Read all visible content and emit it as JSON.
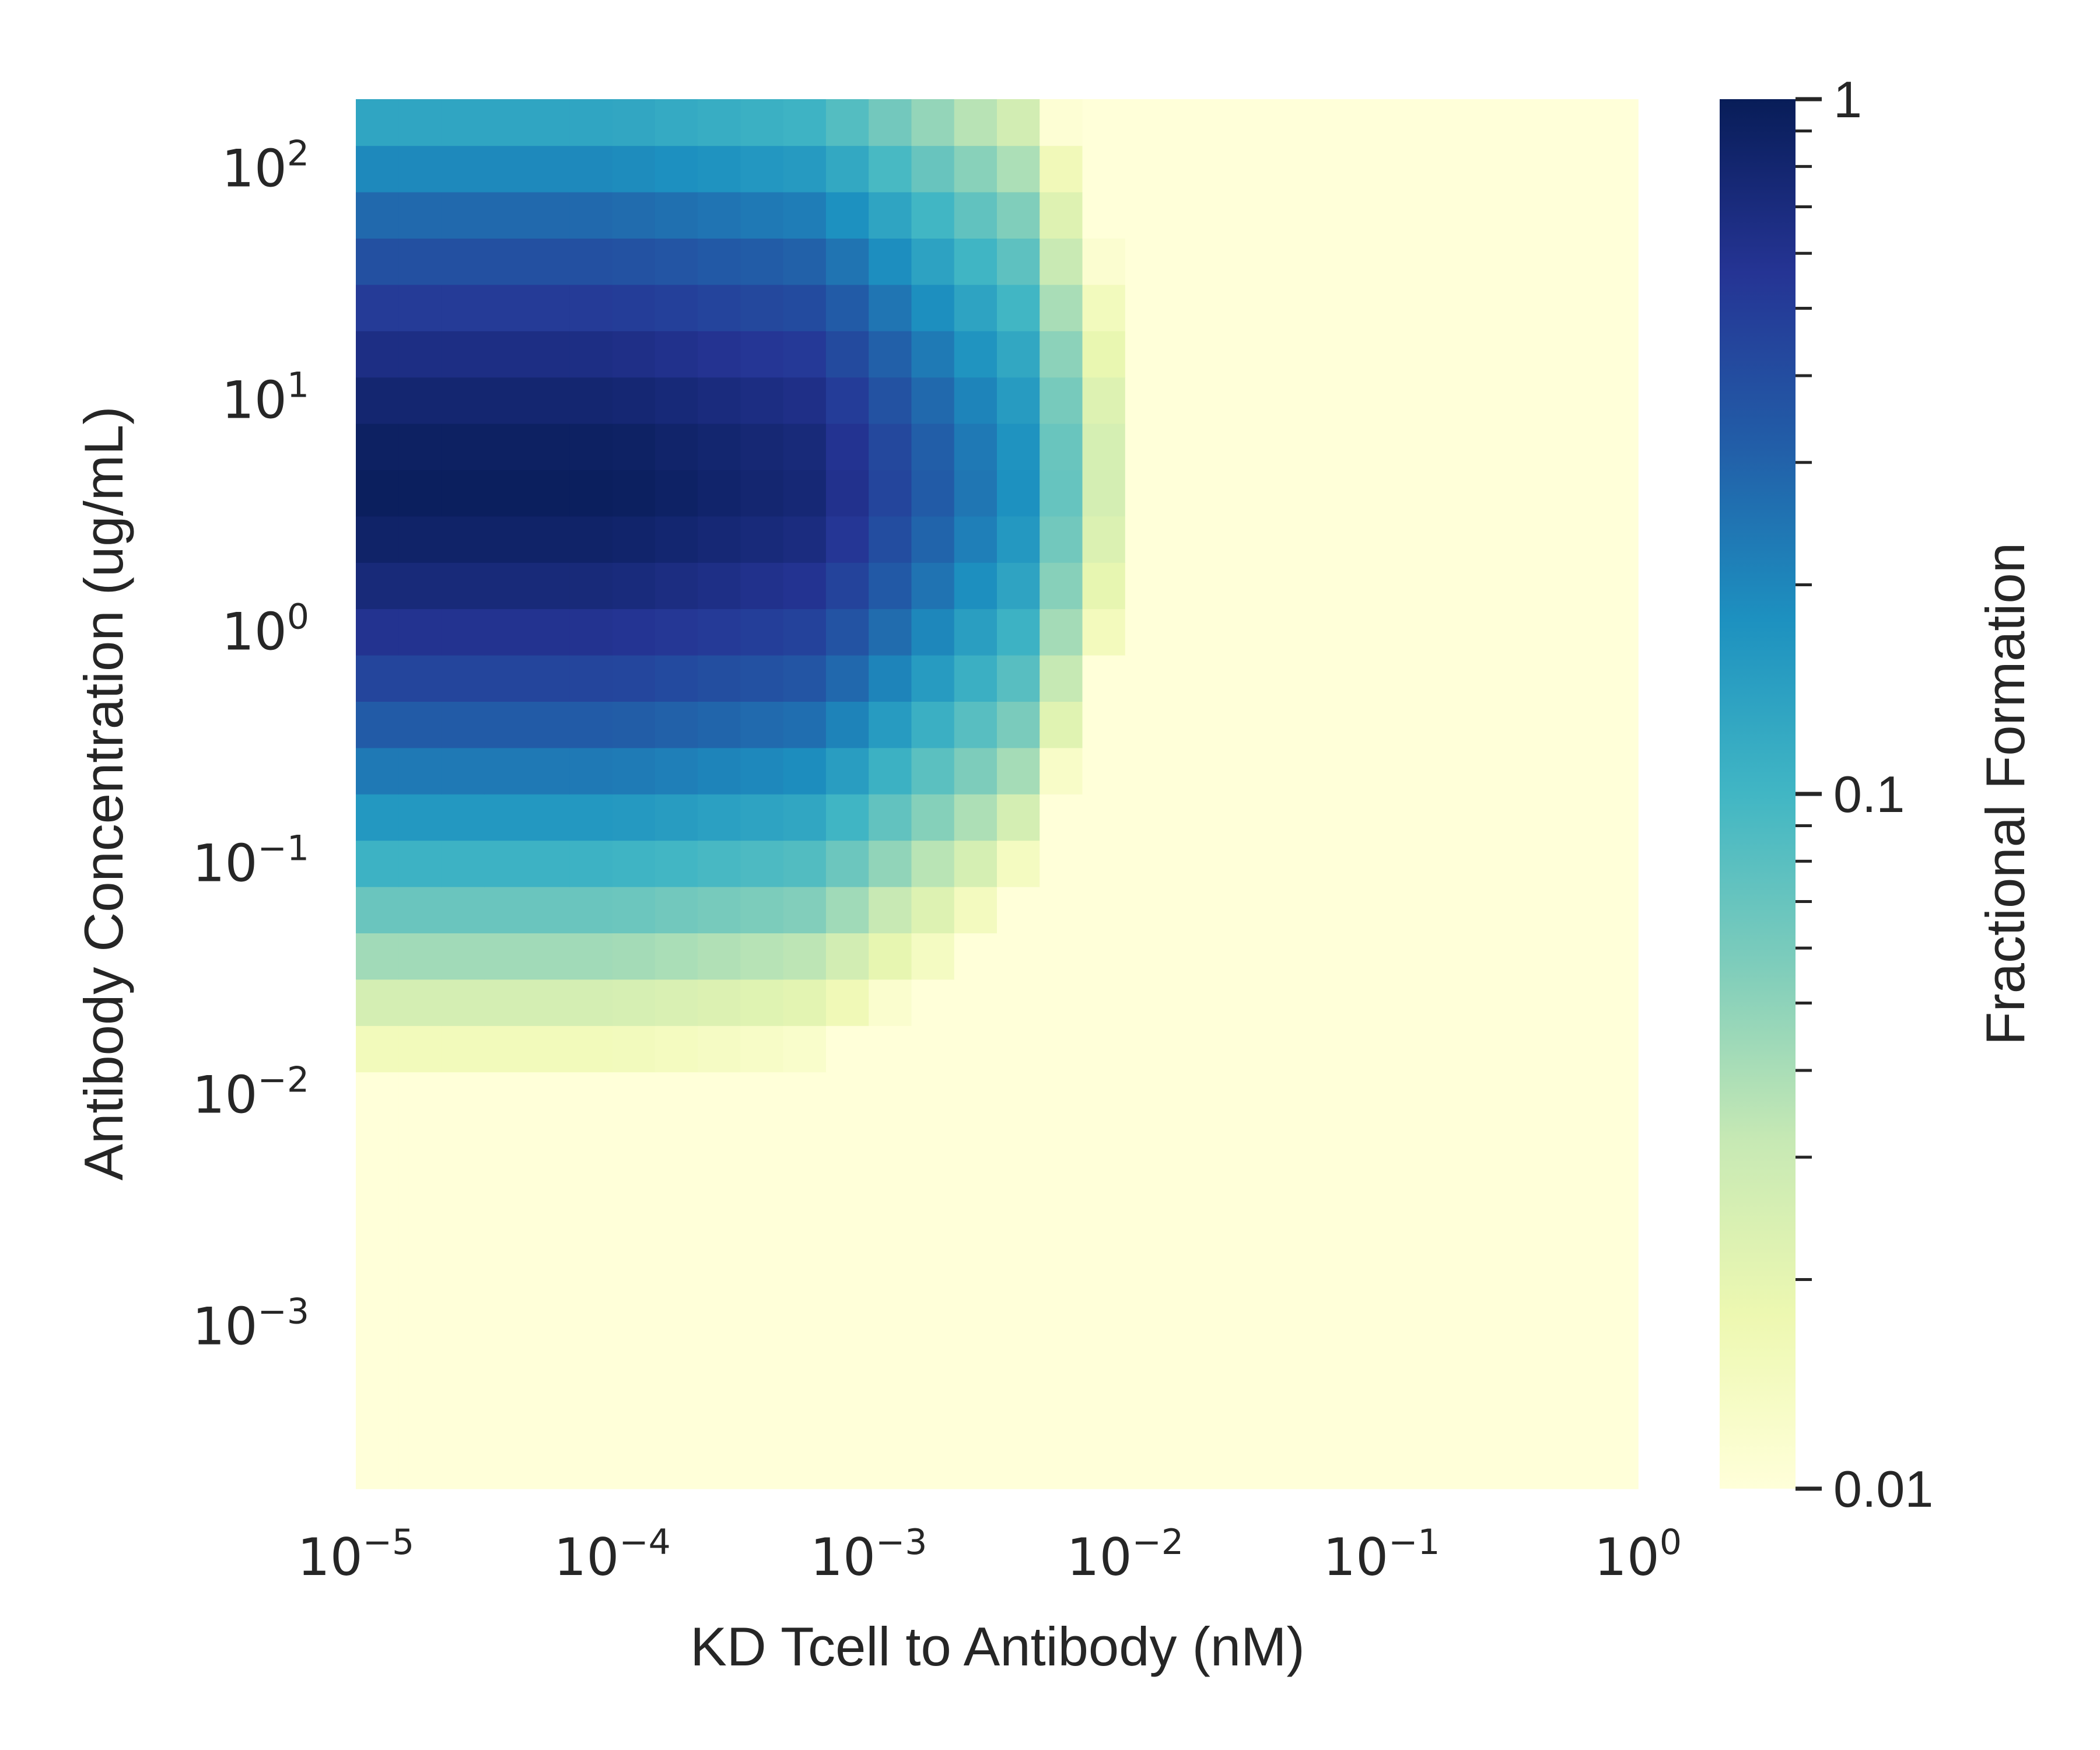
{
  "chart_data": {
    "type": "heatmap",
    "title": "",
    "xlabel": "KD Tcell to Antibody (nM)",
    "ylabel": "Antibody Concentration (ug/mL)",
    "x_scale": "log",
    "y_scale": "log",
    "x_range": [
      1e-05,
      1
    ],
    "y_range": [
      0.0002,
      200
    ],
    "x_ticks": [
      {
        "base": "10",
        "exp": "−5"
      },
      {
        "base": "10",
        "exp": "−4"
      },
      {
        "base": "10",
        "exp": "−3"
      },
      {
        "base": "10",
        "exp": "−2"
      },
      {
        "base": "10",
        "exp": "−1"
      },
      {
        "base": "10",
        "exp": "0"
      }
    ],
    "y_ticks": [
      {
        "base": "10",
        "exp": "2"
      },
      {
        "base": "10",
        "exp": "1"
      },
      {
        "base": "10",
        "exp": "0"
      },
      {
        "base": "10",
        "exp": "−1"
      },
      {
        "base": "10",
        "exp": "−2"
      },
      {
        "base": "10",
        "exp": "−3"
      }
    ],
    "grid": false,
    "colorbar": {
      "label": "Fractional Formation",
      "scale": "log",
      "range": [
        0.01,
        1
      ],
      "colormap": "YlGnBu",
      "tick_labels": [
        "1",
        "0.1",
        "0.01"
      ],
      "colors": [
        "#ffffd9",
        "#edf8b1",
        "#c7e9b4",
        "#7fcdbb",
        "#41b6c4",
        "#1d91c0",
        "#225ea8",
        "#253494",
        "#081d58"
      ]
    },
    "grid_size": {
      "cols": 30,
      "rows": 30
    },
    "description_of_values": "Fractional formation per cell (0.01 floor); high at low KD and y near 10^0.6, decaying as KD increases or concentration moves away from optimum."
  }
}
